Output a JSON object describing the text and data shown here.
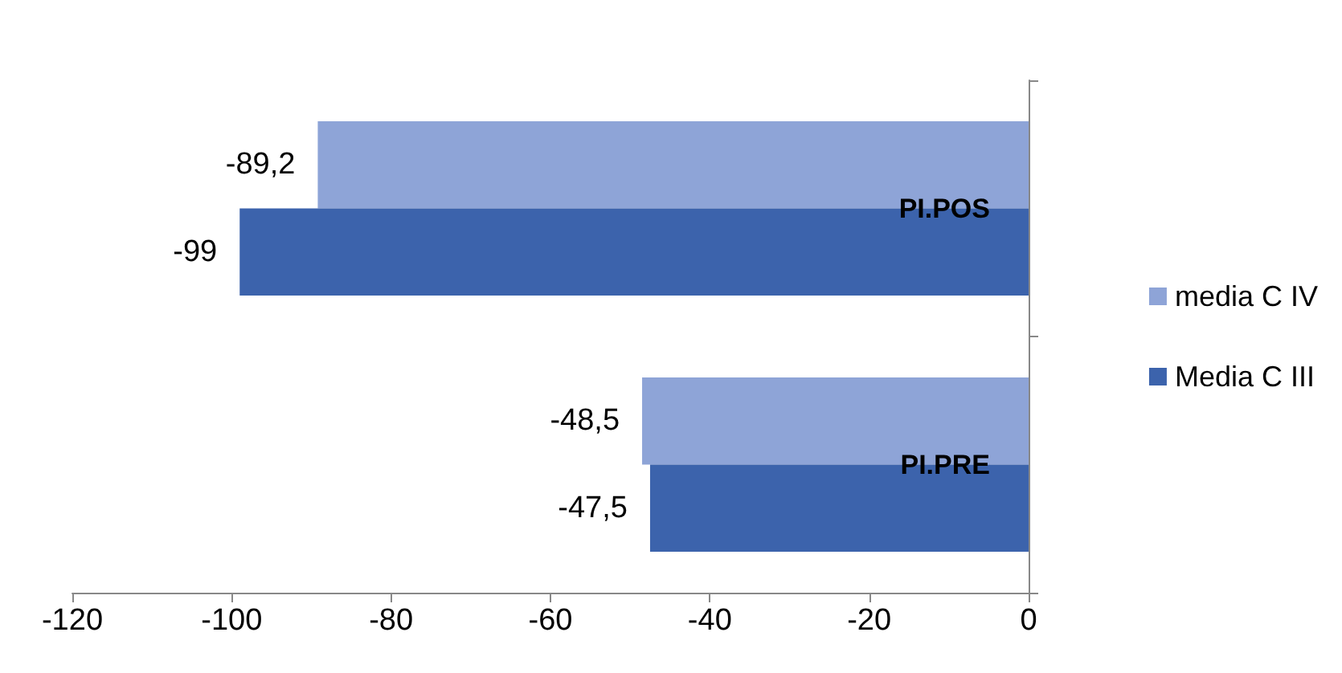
{
  "chart_data": {
    "type": "bar",
    "orientation": "horizontal",
    "categories": [
      "PI.POS",
      "PI.PRE"
    ],
    "series": [
      {
        "name": "media C IV",
        "color": "#8EA4D7",
        "values": [
          -89.2,
          -48.5
        ],
        "value_labels": [
          "-89,2",
          "-48,5"
        ]
      },
      {
        "name": "Media C III",
        "color": "#3C63AC",
        "values": [
          -99,
          -47.5
        ],
        "value_labels": [
          "-99",
          "-47,5"
        ]
      }
    ],
    "xlim": [
      -120,
      0
    ],
    "xticks": [
      -120,
      -100,
      -80,
      -60,
      -40,
      -20,
      0
    ],
    "grid": false,
    "legend": "right"
  }
}
